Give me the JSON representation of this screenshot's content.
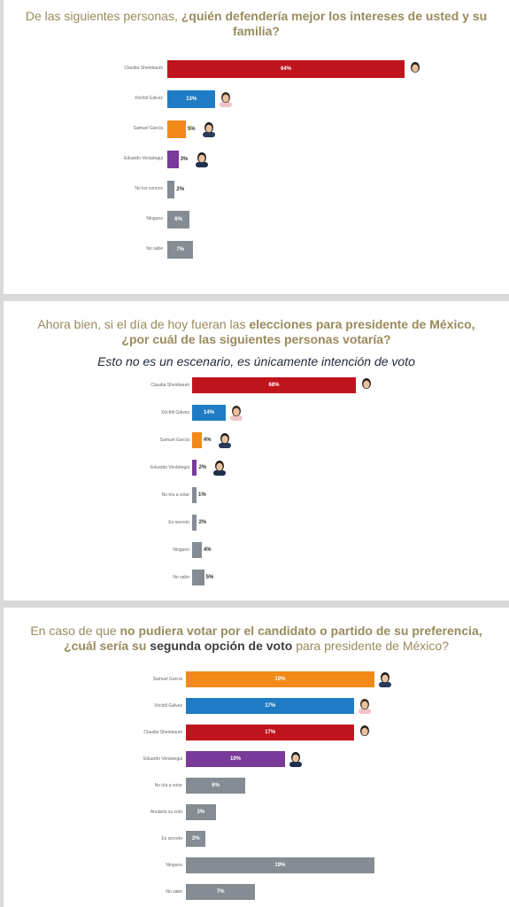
{
  "colors": {
    "morena_red": "#c0141c",
    "pan_blue": "#1f7cc4",
    "mc_orange": "#f28a1a",
    "pri_purple": "#7a3a9a",
    "neutral_gray": "#858c93",
    "title_gold": "#9a8a5c"
  },
  "panels": [
    {
      "title_normal_1": "De las siguientes personas, ",
      "title_bold_1": "¿quién defendería mejor los intereses de usted y su familia?",
      "chart_data": {
        "type": "bar",
        "orientation": "horizontal",
        "unit": "%",
        "categories": [
          "Claudia Sheinbaum",
          "Xóchitl Gálvez",
          "Samuel García",
          "Eduardo Verástegui",
          "No los conoce",
          "Ninguno",
          "No sabe"
        ],
        "values": [
          64,
          13,
          5,
          3,
          2,
          6,
          7
        ],
        "value_labels": [
          "64%",
          "13%",
          "5%",
          "3%",
          "2%",
          "6%",
          "7%"
        ],
        "colors": [
          "#c0141c",
          "#1f7cc4",
          "#f28a1a",
          "#7a3a9a",
          "#858c93",
          "#858c93",
          "#858c93"
        ],
        "photos": [
          "claudia",
          "xochitl",
          "samuel",
          "eduardo",
          null,
          null,
          null
        ]
      }
    },
    {
      "title_normal_1": "Ahora bien, si el día de hoy fueran las ",
      "title_bold_1": "elecciones para presidente de México,",
      "title_bold_2": "¿por cuál de las siguientes personas votaría?",
      "subtitle": "Esto no es un escenario, es únicamente intención de voto",
      "chart_data": {
        "type": "bar",
        "orientation": "horizontal",
        "unit": "%",
        "categories": [
          "Claudia Sheinbaum",
          "Xóchitl Gálvez",
          "Samuel García",
          "Eduardo Verástegui",
          "No iría a votar",
          "Es secreto",
          "Ninguno",
          "No sabe"
        ],
        "values": [
          68,
          14,
          4,
          2,
          1,
          2,
          4,
          5
        ],
        "value_labels": [
          "68%",
          "14%",
          "4%",
          "2%",
          "1%",
          "2%",
          "4%",
          "5%"
        ],
        "colors": [
          "#c0141c",
          "#1f7cc4",
          "#f28a1a",
          "#7a3a9a",
          "#858c93",
          "#858c93",
          "#858c93",
          "#858c93"
        ],
        "photos": [
          "claudia",
          "xochitl",
          "samuel",
          "eduardo",
          null,
          null,
          null,
          null
        ]
      }
    },
    {
      "title_normal_1": "En caso de que ",
      "title_bold_1": "no pudiera votar por el candidato o partido de su preferencia,",
      "title_bold_2": "¿cuál sería su ",
      "title_bold_dark": "segunda opción de voto",
      "title_normal_2": " para presidente de México?",
      "chart_data": {
        "type": "bar",
        "orientation": "horizontal",
        "unit": "%",
        "categories": [
          "Samuel García",
          "Xóchitl Gálvez",
          "Claudia Sheinbaum",
          "Eduardo Verástegui",
          "No iría a votar",
          "Anularía su voto",
          "Es secreto",
          "Ninguno",
          "No sabe"
        ],
        "values": [
          19,
          17,
          17,
          10,
          6,
          3,
          2,
          19,
          7
        ],
        "value_labels": [
          "19%",
          "17%",
          "17%",
          "10%",
          "6%",
          "3%",
          "2%",
          "19%",
          "7%"
        ],
        "colors": [
          "#f28a1a",
          "#1f7cc4",
          "#c0141c",
          "#7a3a9a",
          "#858c93",
          "#858c93",
          "#858c93",
          "#858c93",
          "#858c93"
        ],
        "photos": [
          "samuel",
          "xochitl",
          "claudia",
          "eduardo",
          null,
          null,
          null,
          null,
          null
        ]
      }
    }
  ]
}
